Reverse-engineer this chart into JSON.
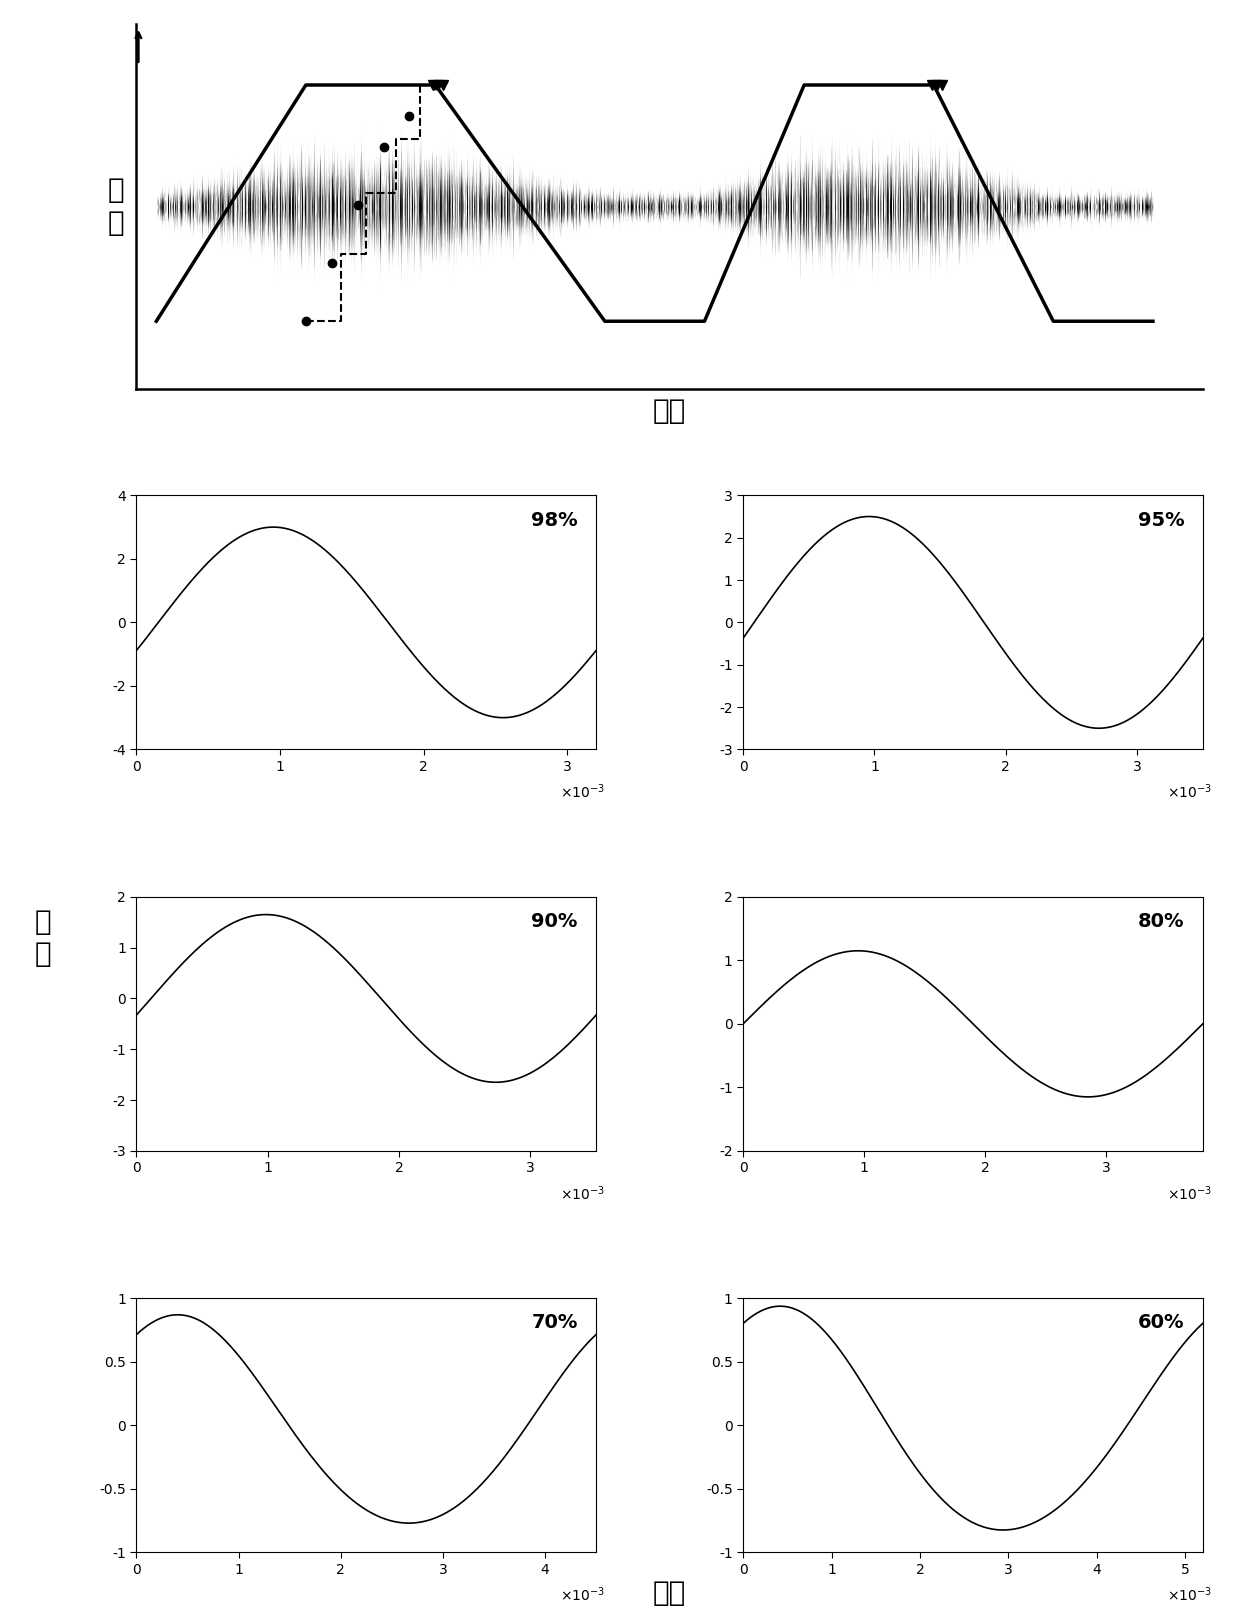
{
  "top_ylabel": "转\n速",
  "top_xlabel": "时间",
  "bottom_xlabel": "时间",
  "bottom_ylabel": "幅\n值",
  "subplots": [
    {
      "label": "98%",
      "amp": 3.0,
      "phase": -0.3,
      "ylim": [
        -4,
        4
      ],
      "xlim": 0.0032,
      "yticks": [
        -4,
        -2,
        0,
        2,
        4
      ],
      "xticks": [
        0,
        0.001,
        0.002,
        0.003
      ]
    },
    {
      "label": "95%",
      "amp": 2.5,
      "phase": -0.15,
      "ylim": [
        -3,
        3
      ],
      "xlim": 0.0035,
      "yticks": [
        -3,
        -2,
        -1,
        0,
        1,
        2,
        3
      ],
      "xticks": [
        0,
        0.001,
        0.002,
        0.003
      ]
    },
    {
      "label": "90%",
      "amp": 1.65,
      "phase": -0.2,
      "ylim": [
        -3,
        2
      ],
      "xlim": 0.0035,
      "yticks": [
        -3,
        -2,
        -1,
        0,
        1,
        2
      ],
      "xticks": [
        0,
        0.001,
        0.002,
        0.003
      ]
    },
    {
      "label": "80%",
      "amp": 1.15,
      "phase": 0.0,
      "ylim": [
        -2,
        2
      ],
      "xlim": 0.0038,
      "yticks": [
        -2,
        -1,
        0,
        1,
        2
      ],
      "xticks": [
        0,
        0.001,
        0.002,
        0.003
      ]
    },
    {
      "label": "70%",
      "amp": 0.82,
      "phase": 1.0,
      "ylim": [
        -1,
        1
      ],
      "xlim": 0.0045,
      "yticks": [
        -1,
        -0.5,
        0,
        0.5,
        1
      ],
      "xticks": [
        0,
        0.001,
        0.002,
        0.003,
        0.004
      ]
    },
    {
      "label": "60%",
      "amp": 0.88,
      "phase": 1.1,
      "ylim": [
        -1,
        1
      ],
      "xlim": 0.0052,
      "yticks": [
        -1,
        -0.5,
        0,
        0.5,
        1
      ],
      "xticks": [
        0,
        0.001,
        0.002,
        0.003,
        0.004,
        0.005
      ]
    }
  ],
  "background_color": "#ffffff",
  "line_color": "#000000",
  "trap_t": [
    0,
    1.5,
    2.8,
    4.5,
    5.5,
    6.5,
    7.8,
    9.0,
    10.0
  ],
  "trap_v": [
    -0.85,
    0.9,
    0.9,
    -0.85,
    -0.85,
    0.9,
    0.9,
    -0.85,
    -0.85
  ],
  "stair_t": [
    1.5,
    1.85,
    1.85,
    2.1,
    2.1,
    2.4,
    2.4,
    2.65,
    2.65,
    2.8
  ],
  "stair_v": [
    -0.85,
    -0.85,
    -0.35,
    -0.35,
    0.1,
    0.1,
    0.5,
    0.5,
    0.9,
    0.9
  ],
  "dot_t": [
    1.5,
    1.76,
    2.02,
    2.28,
    2.54,
    2.8
  ],
  "dot_v": [
    -0.85,
    -0.42,
    0.01,
    0.44,
    0.67,
    0.9
  ],
  "tri1_t": [
    2.78,
    2.83,
    2.88
  ],
  "tri1_v": [
    0.9,
    0.9,
    0.9
  ],
  "tri2_t": [
    7.78,
    7.83,
    7.88
  ],
  "tri2_v": [
    0.9,
    0.9,
    0.9
  ]
}
